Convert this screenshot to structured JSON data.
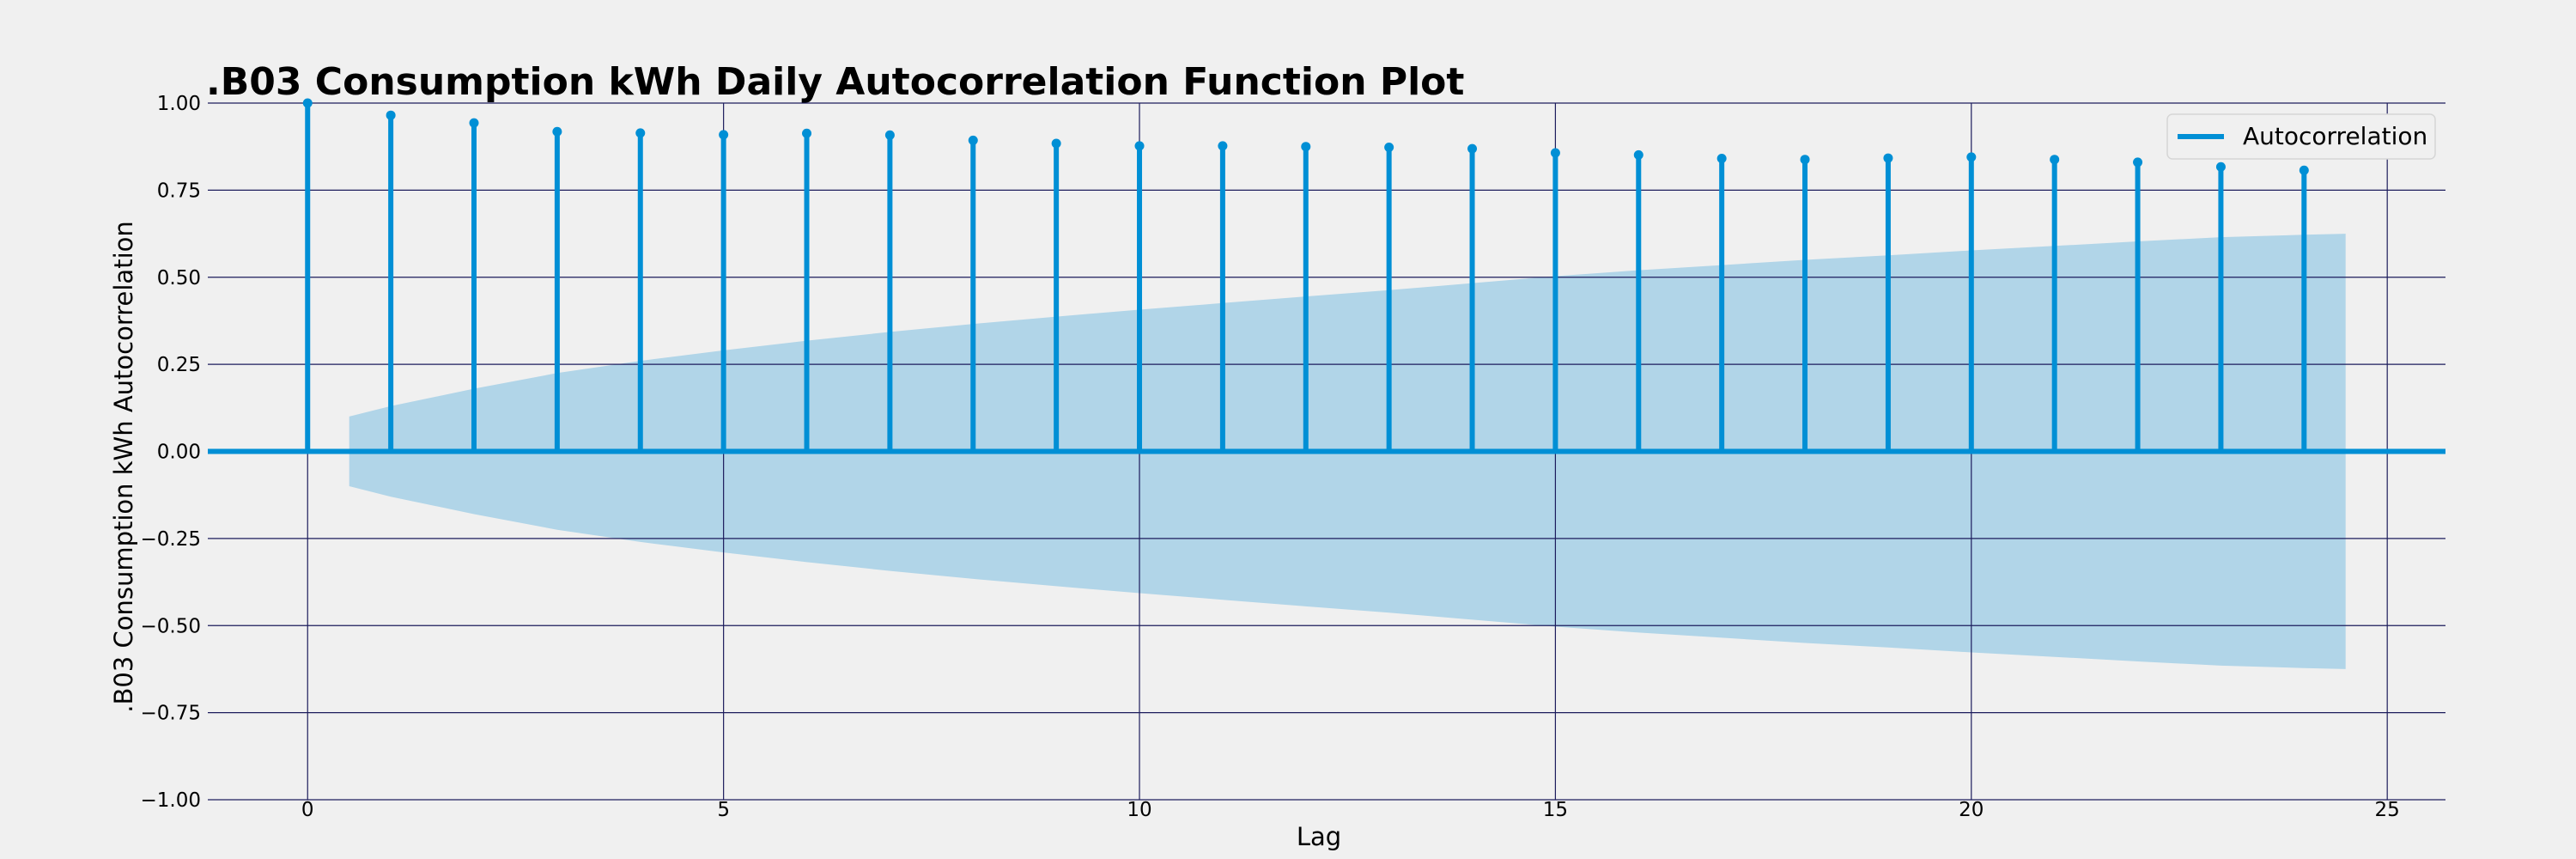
{
  "chart_data": {
    "type": "stem",
    "title": ".B03 Consumption kWh Daily Autocorrelation Function Plot",
    "xlabel": "Lag",
    "ylabel": ".B03 Consumption kWh Autocorrelation",
    "xlim": [
      -1.2,
      25.7
    ],
    "ylim": [
      -1.0,
      1.0
    ],
    "xticks": [
      0,
      5,
      10,
      15,
      20,
      25
    ],
    "yticks": [
      1.0,
      0.75,
      0.5,
      0.25,
      0.0,
      -0.25,
      -0.5,
      -0.75,
      -1.0
    ],
    "xtick_labels": [
      "0",
      "5",
      "10",
      "15",
      "20",
      "25"
    ],
    "ytick_labels": [
      "1.00",
      "0.75",
      "0.50",
      "0.25",
      "0.00",
      "−0.25",
      "−0.50",
      "−0.75",
      "−1.00"
    ],
    "grid": true,
    "legend_position": "top-right",
    "series": [
      {
        "name": "Autocorrelation",
        "color": "#008fd5",
        "x": [
          0,
          1,
          2,
          3,
          4,
          5,
          6,
          7,
          8,
          9,
          10,
          11,
          12,
          13,
          14,
          15,
          16,
          17,
          18,
          19,
          20,
          21,
          22,
          23,
          24
        ],
        "values": [
          1.0,
          0.965,
          0.943,
          0.918,
          0.914,
          0.909,
          0.913,
          0.908,
          0.893,
          0.884,
          0.877,
          0.877,
          0.875,
          0.873,
          0.869,
          0.857,
          0.851,
          0.841,
          0.838,
          0.842,
          0.845,
          0.838,
          0.83,
          0.817,
          0.807
        ]
      }
    ],
    "confidence_band": {
      "color": "#b1d5e8",
      "x": [
        0.5,
        1,
        2,
        3,
        4,
        5,
        6,
        7,
        8,
        9,
        10,
        11,
        12,
        13,
        14,
        15,
        16,
        17,
        18,
        19,
        20,
        21,
        22,
        23,
        24,
        24.5
      ],
      "upper": [
        0.1,
        0.13,
        0.18,
        0.225,
        0.26,
        0.29,
        0.318,
        0.343,
        0.366,
        0.387,
        0.407,
        0.426,
        0.445,
        0.463,
        0.483,
        0.503,
        0.52,
        0.535,
        0.55,
        0.563,
        0.577,
        0.59,
        0.603,
        0.615,
        0.622,
        0.625
      ],
      "lower": [
        -0.1,
        -0.13,
        -0.18,
        -0.225,
        -0.26,
        -0.29,
        -0.318,
        -0.343,
        -0.366,
        -0.387,
        -0.407,
        -0.426,
        -0.445,
        -0.463,
        -0.483,
        -0.503,
        -0.52,
        -0.535,
        -0.55,
        -0.563,
        -0.577,
        -0.59,
        -0.603,
        -0.615,
        -0.622,
        -0.625
      ]
    }
  }
}
